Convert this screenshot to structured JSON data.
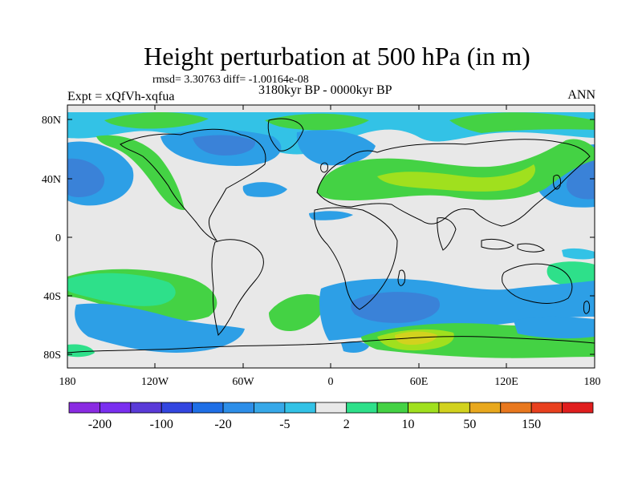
{
  "title": "Height perturbation at 500 hPa (in m)",
  "stats": "rmsd= 3.30763 diff= -1.00164e-08",
  "period": "3180kyr BP - 0000kyr BP",
  "experiment": "Expt = xQfVh-xqfua",
  "season": "ANN",
  "map": {
    "background": "#e8e8e8",
    "lat_labels": [
      "80N",
      "40N",
      "0",
      "40S",
      "80S"
    ],
    "lon_labels": [
      "180",
      "120W",
      "60W",
      "0",
      "60E",
      "120E",
      "180"
    ]
  },
  "colorbar": {
    "colors": [
      "#8a2be2",
      "#7a2ff0",
      "#5a3ad8",
      "#3346e0",
      "#1f6fe6",
      "#2d8ee8",
      "#37a8e8",
      "#33c2e6",
      "#e8e8e8",
      "#2ee08a",
      "#44d244",
      "#a0e01e",
      "#d2d21e",
      "#e8a81e",
      "#e8781e",
      "#e8401e",
      "#e01e1e"
    ],
    "labels": [
      "-200",
      "-100",
      "-20",
      "-5",
      "2",
      "10",
      "50",
      "150"
    ]
  },
  "field_colors": {
    "strong_negative": "#3a82d8",
    "negative": "#2d9fe6",
    "weak_negative": "#33c2e6",
    "weak_positive": "#2ee08a",
    "positive": "#44d244",
    "strong_positive": "#a0e01e",
    "max_positive": "#d2d21e"
  }
}
